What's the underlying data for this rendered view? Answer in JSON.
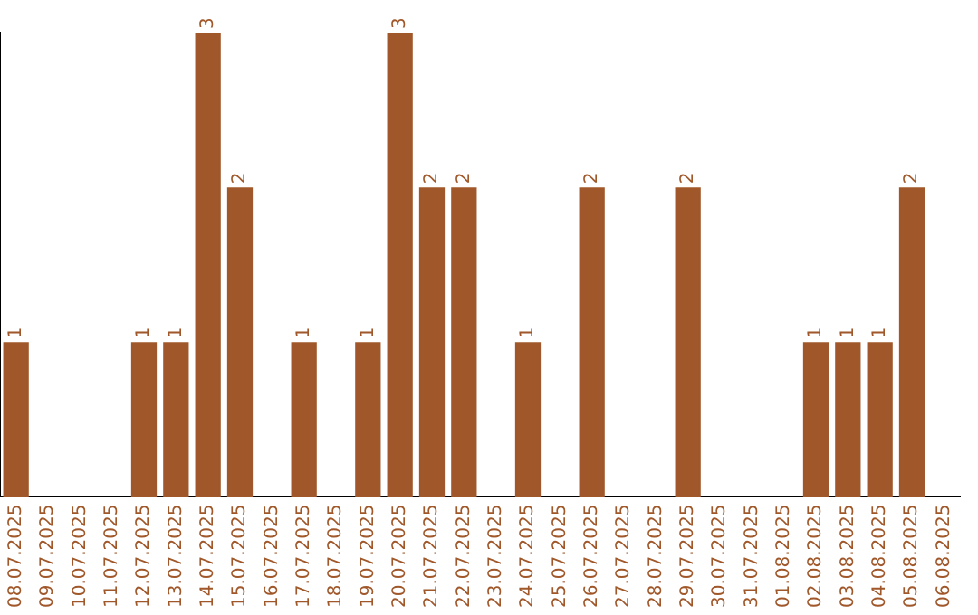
{
  "chart_data": {
    "type": "bar",
    "categories": [
      "08.07.2025",
      "09.07.2025",
      "10.07.2025",
      "11.07.2025",
      "12.07.2025",
      "13.07.2025",
      "14.07.2025",
      "15.07.2025",
      "16.07.2025",
      "17.07.2025",
      "18.07.2025",
      "19.07.2025",
      "20.07.2025",
      "21.07.2025",
      "22.07.2025",
      "23.07.2025",
      "24.07.2025",
      "25.07.2025",
      "26.07.2025",
      "27.07.2025",
      "28.07.2025",
      "29.07.2025",
      "30.07.2025",
      "31.07.2025",
      "01.08.2025",
      "02.08.2025",
      "03.08.2025",
      "04.08.2025",
      "05.08.2025",
      "06.08.2025"
    ],
    "values": [
      1,
      0,
      0,
      0,
      1,
      1,
      3,
      2,
      0,
      1,
      0,
      1,
      3,
      2,
      2,
      0,
      1,
      0,
      2,
      0,
      0,
      2,
      0,
      0,
      0,
      1,
      1,
      1,
      2,
      0
    ],
    "value_labels": [
      "1",
      null,
      null,
      null,
      "1",
      "1",
      "3",
      "2",
      null,
      "1",
      null,
      "1",
      "3",
      "2",
      "2",
      null,
      "1",
      null,
      "2",
      null,
      null,
      "2",
      null,
      null,
      null,
      "1",
      "1",
      "1",
      "2",
      null
    ],
    "color": "#a0582a",
    "grid": false,
    "legend": false,
    "tick_labels": "x"
  }
}
